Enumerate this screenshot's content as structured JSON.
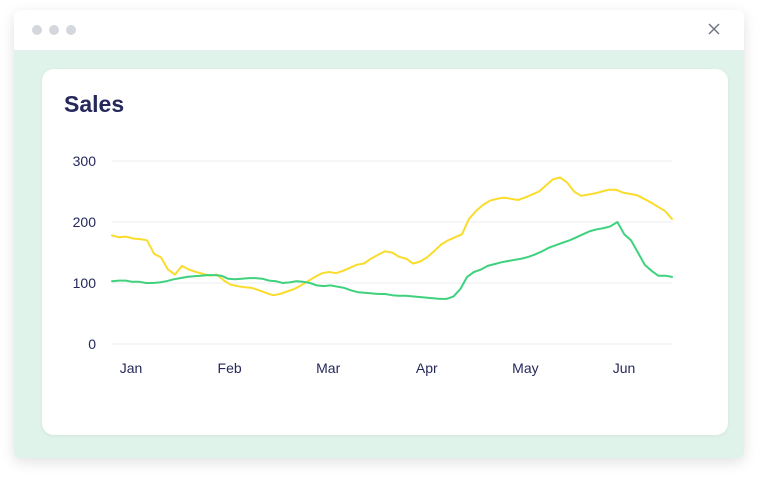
{
  "window": {
    "close_icon": "close-icon"
  },
  "chart_data": {
    "type": "line",
    "title": "Sales",
    "xlabel": "",
    "ylabel": "",
    "ylim": [
      0,
      300
    ],
    "yticks": [
      0,
      100,
      200,
      300
    ],
    "x_tick_labels": [
      "Jan",
      "Feb",
      "Mar",
      "Apr",
      "May",
      "Jun"
    ],
    "grid": true,
    "legend": "none",
    "series": [
      {
        "color": "#f9dc2c",
        "values": [
          178,
          175,
          176,
          173,
          172,
          170,
          148,
          142,
          122,
          114,
          128,
          122,
          118,
          115,
          112,
          114,
          104,
          97,
          95,
          93,
          92,
          88,
          84,
          80,
          82,
          86,
          90,
          96,
          103,
          110,
          116,
          118,
          116,
          120,
          125,
          130,
          132,
          140,
          146,
          152,
          150,
          143,
          140,
          132,
          135,
          142,
          152,
          163,
          170,
          175,
          180,
          205,
          218,
          228,
          235,
          238,
          240,
          238,
          236,
          240,
          245,
          250,
          260,
          270,
          273,
          265,
          250,
          243,
          245,
          247,
          250,
          253,
          253,
          248,
          246,
          244,
          238,
          232,
          225,
          218,
          205
        ]
      },
      {
        "color": "#3ed17e",
        "values": [
          103,
          104,
          104,
          102,
          102,
          100,
          100,
          101,
          103,
          106,
          108,
          110,
          111,
          112,
          113,
          113,
          112,
          107,
          106,
          107,
          108,
          108,
          107,
          104,
          103,
          100,
          101,
          103,
          102,
          100,
          96,
          95,
          96,
          94,
          92,
          88,
          85,
          84,
          83,
          82,
          82,
          80,
          79,
          79,
          78,
          77,
          76,
          75,
          74,
          74,
          78,
          90,
          110,
          118,
          122,
          128,
          131,
          134,
          136,
          138,
          140,
          143,
          147,
          152,
          158,
          162,
          166,
          170,
          175,
          180,
          185,
          188,
          190,
          193,
          200,
          180,
          170,
          150,
          130,
          120,
          112,
          112,
          110
        ]
      }
    ]
  }
}
